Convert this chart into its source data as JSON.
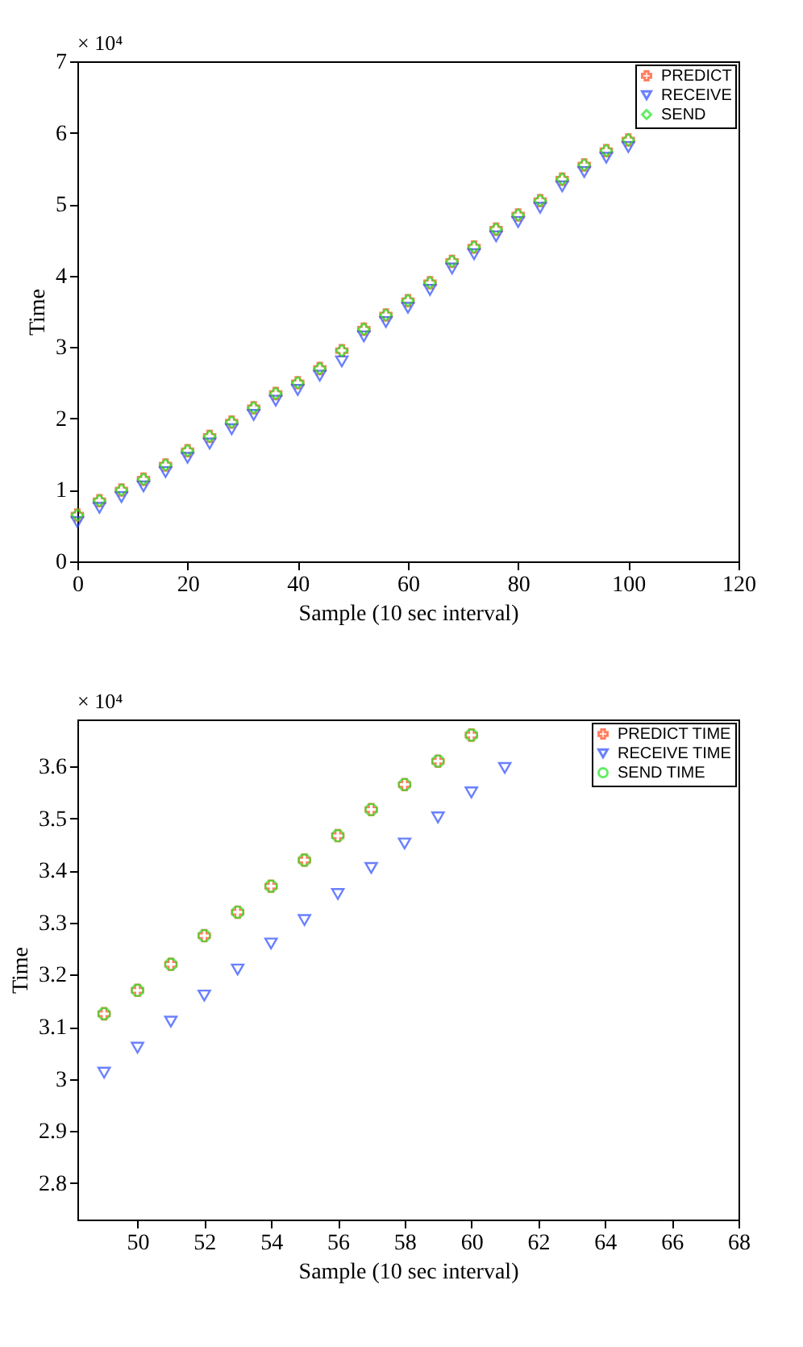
{
  "chart_data": [
    {
      "type": "scatter",
      "xlabel": "Sample (10 sec interval)",
      "ylabel": "Time",
      "annotations": [
        "× 10⁴"
      ],
      "xlim": [
        0,
        120
      ],
      "xticks": [
        0,
        20,
        40,
        60,
        80,
        100,
        120
      ],
      "ylim": [
        0,
        7
      ],
      "yticks": [
        0,
        1,
        2,
        3,
        4,
        5,
        6,
        7
      ],
      "legend": "top right",
      "x": [
        0,
        4,
        8,
        12,
        16,
        20,
        24,
        28,
        32,
        36,
        40,
        44,
        48,
        52,
        56,
        60,
        64,
        68,
        72,
        76,
        80,
        84,
        88,
        92,
        96,
        100
      ],
      "series": [
        {
          "name": "PREDICT",
          "color": "#ff4a1c",
          "marker": "cross",
          "values": [
            0.65,
            0.85,
            1.0,
            1.15,
            1.35,
            1.55,
            1.75,
            1.95,
            2.15,
            2.35,
            2.5,
            2.7,
            2.95,
            3.25,
            3.45,
            3.65,
            3.9,
            4.2,
            4.4,
            4.65,
            4.85,
            5.05,
            5.35,
            5.55,
            5.75,
            5.9
          ]
        },
        {
          "name": "RECEIVE",
          "color": "#2a4bff",
          "marker": "triangle",
          "values": [
            0.55,
            0.75,
            0.9,
            1.05,
            1.25,
            1.45,
            1.65,
            1.85,
            2.05,
            2.25,
            2.4,
            2.6,
            2.8,
            3.15,
            3.35,
            3.55,
            3.8,
            4.1,
            4.3,
            4.55,
            4.75,
            4.95,
            5.25,
            5.45,
            5.65,
            5.8
          ]
        },
        {
          "name": "SEND",
          "color": "#22e622",
          "marker": "diamond",
          "values": [
            0.65,
            0.85,
            1.0,
            1.15,
            1.35,
            1.55,
            1.75,
            1.95,
            2.15,
            2.35,
            2.5,
            2.7,
            2.95,
            3.25,
            3.45,
            3.65,
            3.9,
            4.2,
            4.4,
            4.65,
            4.85,
            5.05,
            5.35,
            5.55,
            5.75,
            5.9
          ]
        }
      ]
    },
    {
      "type": "scatter",
      "xlabel": "Sample (10 sec interval)",
      "ylabel": "Time",
      "annotations": [
        "× 10⁴"
      ],
      "xlim": [
        48.2,
        68
      ],
      "xticks": [
        50,
        52,
        54,
        56,
        58,
        60,
        62,
        64,
        66,
        68
      ],
      "ylim": [
        2.73,
        3.69
      ],
      "yticks": [
        2.8,
        2.9,
        {
          "value": 3,
          "label": "3"
        },
        3.1,
        3.2,
        3.3,
        3.4,
        3.5,
        3.6
      ],
      "legend": "top right",
      "series": [
        {
          "name": "PREDICT TIME",
          "color": "#ff4a1c",
          "marker": "cross",
          "x": [
            49,
            50,
            51,
            52,
            53,
            54,
            55,
            56,
            57,
            58,
            59,
            60
          ],
          "values": [
            3.125,
            3.17,
            3.22,
            3.275,
            3.32,
            3.37,
            3.42,
            3.467,
            3.517,
            3.565,
            3.61,
            3.66
          ]
        },
        {
          "name": "RECEIVE TIME",
          "color": "#2a4bff",
          "marker": "triangle",
          "x": [
            49,
            50,
            51,
            52,
            53,
            54,
            55,
            56,
            57,
            58,
            59,
            60,
            61
          ],
          "values": [
            3.012,
            3.06,
            3.11,
            3.16,
            3.21,
            3.26,
            3.305,
            3.355,
            3.405,
            3.452,
            3.502,
            3.55,
            3.597
          ]
        },
        {
          "name": "SEND TIME",
          "color": "#22e622",
          "marker": "circle",
          "x": [
            49,
            50,
            51,
            52,
            53,
            54,
            55,
            56,
            57,
            58,
            59,
            60
          ],
          "values": [
            3.125,
            3.17,
            3.22,
            3.275,
            3.32,
            3.37,
            3.42,
            3.467,
            3.517,
            3.565,
            3.61,
            3.66
          ]
        }
      ]
    }
  ]
}
